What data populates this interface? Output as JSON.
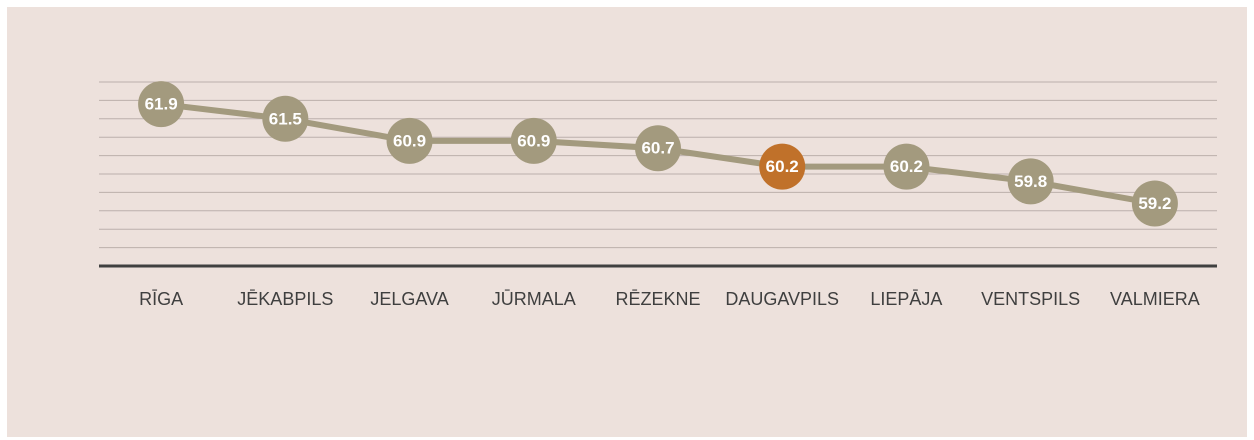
{
  "chart_data": {
    "type": "line",
    "categories": [
      "RĪGA",
      "JĒKABPILS",
      "JELGAVA",
      "JŪRMALA",
      "RĒZEKNE",
      "DAUGAVPILS",
      "LIEPĀJA",
      "VENTSPILS",
      "VALMIERA"
    ],
    "values": [
      61.9,
      61.5,
      60.9,
      60.9,
      60.7,
      60.2,
      60.2,
      59.8,
      59.2
    ],
    "color": "#a39a7e",
    "point_colors": [
      "#a39a7e",
      "#a39a7e",
      "#a39a7e",
      "#a39a7e",
      "#a39a7e",
      "#c0712a",
      "#a39a7e",
      "#a39a7e",
      "#a39a7e"
    ],
    "ylim": [
      57.5,
      62.5
    ],
    "yticks": [
      58,
      58.5,
      59,
      59.5,
      60,
      60.5,
      61,
      61.5,
      62,
      62.5
    ],
    "grid": true
  }
}
